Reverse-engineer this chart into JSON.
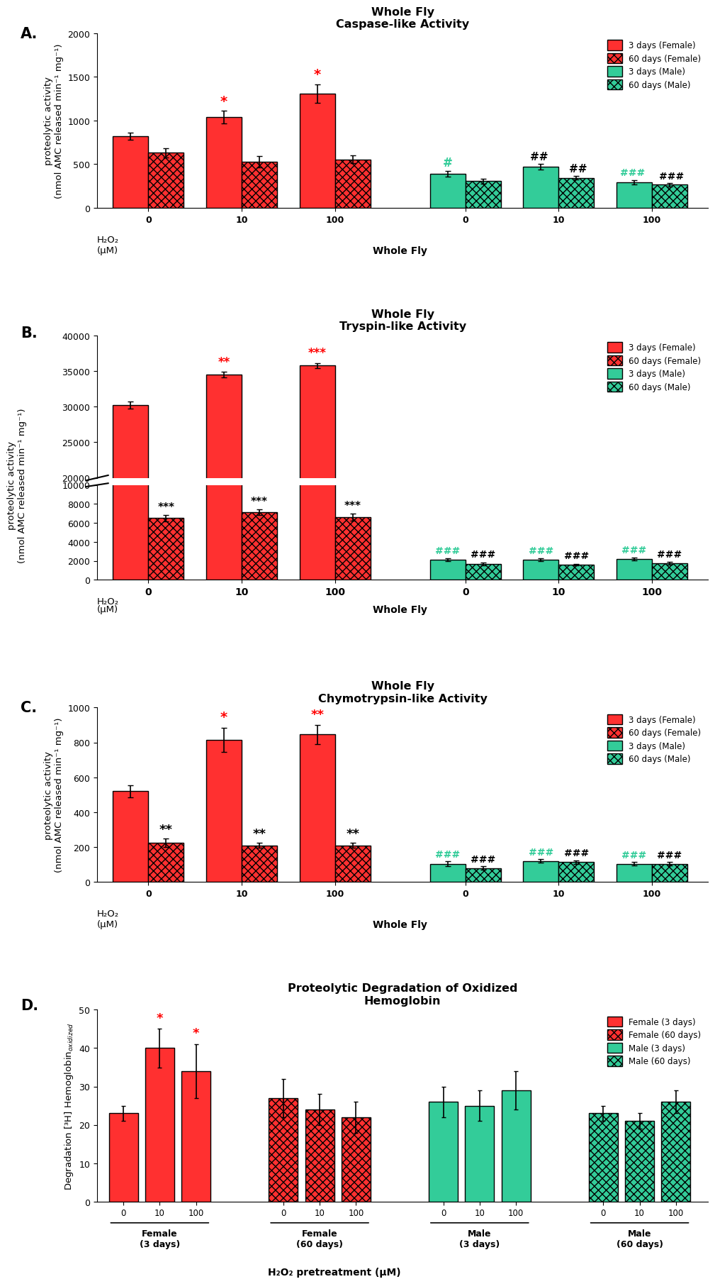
{
  "panel_A": {
    "title1": "Whole Fly",
    "title2": "Caspase-like Activity",
    "ylabel": "proteolytic activity\n(nmol AMC released min⁻¹ mg⁻¹)",
    "female_3d": [
      820,
      1040,
      1310
    ],
    "female_60d": [
      630,
      530,
      555
    ],
    "male_3d": [
      390,
      470,
      295
    ],
    "male_60d": [
      305,
      345,
      265
    ],
    "female_3d_err": [
      40,
      70,
      105
    ],
    "female_60d_err": [
      50,
      65,
      45
    ],
    "male_3d_err": [
      30,
      30,
      25
    ],
    "male_60d_err": [
      25,
      20,
      20
    ],
    "ylim": [
      0,
      2000
    ],
    "yticks": [
      0,
      500,
      1000,
      1500,
      2000
    ]
  },
  "panel_B": {
    "title1": "Whole Fly",
    "title2": "Tryspin-like Activity",
    "ylabel": "proteolytic activity\n(nmol AMC released min⁻¹ mg⁻¹)",
    "female_3d": [
      30200,
      34500,
      35800
    ],
    "female_60d": [
      6500,
      7100,
      6600
    ],
    "male_3d": [
      2100,
      2100,
      2200
    ],
    "male_60d": [
      1700,
      1600,
      1750
    ],
    "female_3d_err": [
      500,
      400,
      350
    ],
    "female_60d_err": [
      350,
      300,
      400
    ],
    "male_3d_err": [
      150,
      150,
      150
    ],
    "male_60d_err": [
      150,
      100,
      150
    ],
    "ylim_lower": [
      0,
      10000
    ],
    "ylim_upper": [
      20000,
      40000
    ],
    "yticks_lower": [
      0,
      2000,
      4000,
      6000,
      8000,
      10000
    ],
    "yticks_upper": [
      20000,
      25000,
      30000,
      35000,
      40000
    ]
  },
  "panel_C": {
    "title1": "Whole Fly",
    "title2": "Chymotrypsin-like Activity",
    "ylabel": "proteolytic activity\n(nmol AMC released min⁻¹ mg⁻¹)",
    "female_3d": [
      520,
      815,
      845
    ],
    "female_60d": [
      225,
      210,
      210
    ],
    "male_3d": [
      105,
      120,
      105
    ],
    "male_60d": [
      80,
      115,
      105
    ],
    "female_3d_err": [
      35,
      70,
      55
    ],
    "female_60d_err": [
      25,
      15,
      15
    ],
    "male_3d_err": [
      15,
      10,
      10
    ],
    "male_60d_err": [
      10,
      10,
      10
    ],
    "ylim": [
      0,
      1000
    ],
    "yticks": [
      0,
      200,
      400,
      600,
      800,
      1000
    ]
  },
  "panel_D": {
    "title": "Proteolytic Degradation of Oxidized\nHemoglobin",
    "ylabel": "Degradation [³H] Hemoglobin$_{oxidized}$",
    "xlabel": "H₂O₂ pretreatment (μM)",
    "female_3d": [
      23,
      40,
      34
    ],
    "female_60d": [
      27,
      24,
      22
    ],
    "male_3d": [
      26,
      25,
      29
    ],
    "male_60d": [
      23,
      21,
      26
    ],
    "female_3d_err": [
      2,
      5,
      7
    ],
    "female_60d_err": [
      5,
      4,
      4
    ],
    "male_3d_err": [
      4,
      4,
      5
    ],
    "male_60d_err": [
      2,
      2,
      3
    ],
    "ylim": [
      0,
      50
    ],
    "yticks": [
      0,
      10,
      20,
      30,
      40,
      50
    ]
  },
  "colors": {
    "female_3d": "#FF3030",
    "female_60d": "#FF3030",
    "male_3d": "#33CC99",
    "male_60d": "#33CC99",
    "hatch": "xxx"
  },
  "legend_ABC": [
    "3 days (Female)",
    "60 days (Female)",
    "3 days (Male)",
    "60 days (Male)"
  ],
  "legend_D": [
    "Female (3 days)",
    "Female (60 days)",
    "Male (3 days)",
    "Male (60 days)"
  ]
}
